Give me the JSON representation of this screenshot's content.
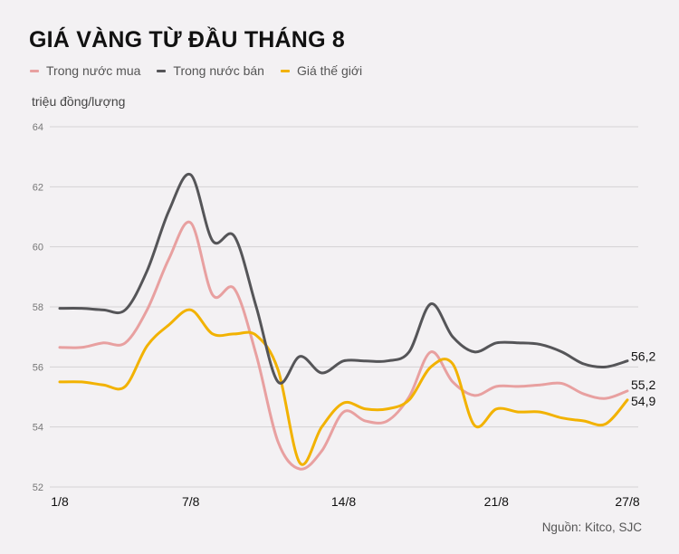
{
  "title": "GIÁ VÀNG TỪ ĐẦU THÁNG 8",
  "unit_label": "triệu đồng/lượng",
  "source": "Nguồn: Kitco, SJC",
  "legend": [
    {
      "label": "Trong nước mua",
      "color": "#e8a0a0"
    },
    {
      "label": "Trong nước bán",
      "color": "#555558"
    },
    {
      "label": "Giá thế giới",
      "color": "#f2b200"
    }
  ],
  "chart_data": {
    "type": "line",
    "title": "GIÁ VÀNG TỪ ĐẦU THÁNG 8",
    "xlabel": "",
    "ylabel": "triệu đồng/lượng",
    "ylim": [
      52,
      64
    ],
    "yticks": [
      52,
      54,
      56,
      58,
      60,
      62,
      64
    ],
    "grid": true,
    "legend_position": "top-left",
    "x_tick_labels": [
      "1/8",
      "7/8",
      "14/8",
      "21/8",
      "27/8"
    ],
    "x_tick_days": [
      1,
      7,
      14,
      21,
      27
    ],
    "x": [
      1,
      2,
      3,
      4,
      5,
      6,
      7,
      8,
      9,
      10,
      11,
      12,
      13,
      14,
      15,
      16,
      17,
      18,
      19,
      20,
      21,
      22,
      23,
      24,
      25,
      26,
      27
    ],
    "series": [
      {
        "name": "Trong nước mua",
        "color": "#e8a0a0",
        "values": [
          56.65,
          56.65,
          56.8,
          56.8,
          57.9,
          59.6,
          60.8,
          58.4,
          58.6,
          56.4,
          53.5,
          52.6,
          53.2,
          54.5,
          54.2,
          54.2,
          55.0,
          56.5,
          55.5,
          55.05,
          55.35,
          55.35,
          55.4,
          55.45,
          55.1,
          54.95,
          55.2
        ],
        "end_label": "55,2"
      },
      {
        "name": "Trong nước bán",
        "color": "#555558",
        "values": [
          57.95,
          57.95,
          57.9,
          57.9,
          59.2,
          61.2,
          62.4,
          60.2,
          60.35,
          58.0,
          55.5,
          56.35,
          55.8,
          56.2,
          56.2,
          56.2,
          56.5,
          58.1,
          57.0,
          56.5,
          56.8,
          56.8,
          56.75,
          56.5,
          56.1,
          56.0,
          56.2
        ],
        "end_label": "56,2"
      },
      {
        "name": "Giá thế giới",
        "color": "#f2b200",
        "values": [
          55.5,
          55.5,
          55.4,
          55.35,
          56.7,
          57.4,
          57.9,
          57.1,
          57.1,
          57.05,
          55.9,
          52.8,
          54.0,
          54.8,
          54.6,
          54.6,
          54.9,
          56.0,
          56.1,
          54.05,
          54.6,
          54.5,
          54.5,
          54.3,
          54.2,
          54.1,
          54.9
        ],
        "end_label": "54,9"
      }
    ]
  }
}
